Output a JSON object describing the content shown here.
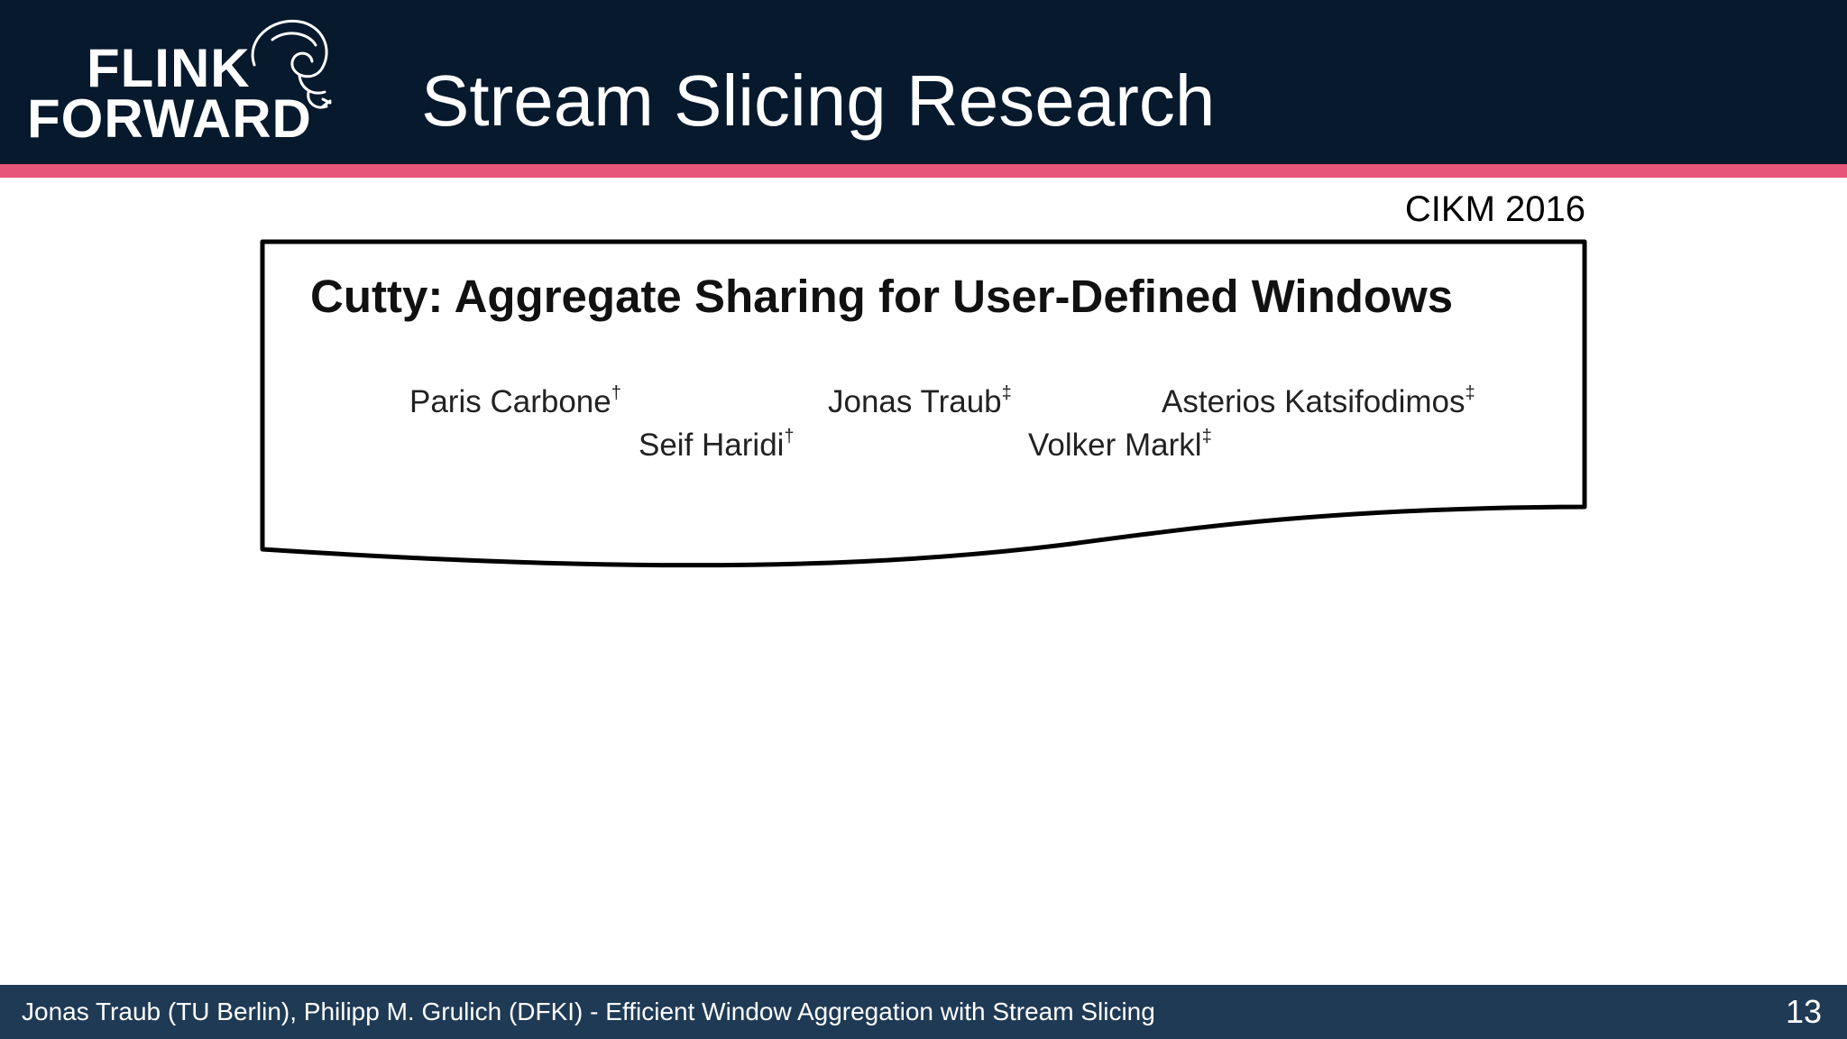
{
  "header": {
    "logo": {
      "line1": "FLINK",
      "line2": "FORWARD",
      "icon": "squirrel-icon"
    },
    "title": "Stream Slicing Research"
  },
  "venue": "CIKM 2016",
  "paper": {
    "title": "Cutty: Aggregate Sharing for User-Defined Windows",
    "authors": [
      {
        "name": "Paris Carbone",
        "mark": "†"
      },
      {
        "name": "Jonas Traub",
        "mark": "‡"
      },
      {
        "name": "Asterios Katsifodimos",
        "mark": "‡"
      },
      {
        "name": "Seif Haridi",
        "mark": "†"
      },
      {
        "name": "Volker Markl",
        "mark": "‡"
      }
    ]
  },
  "footer": {
    "text": "Jonas Traub (TU Berlin), Philipp M. Grulich (DFKI) - Efficient Window Aggregation with Stream Slicing",
    "page_number": "13"
  },
  "colors": {
    "header_bg": "#06192d",
    "accent": "#e8557a",
    "footer_bg": "#1f3a55"
  }
}
